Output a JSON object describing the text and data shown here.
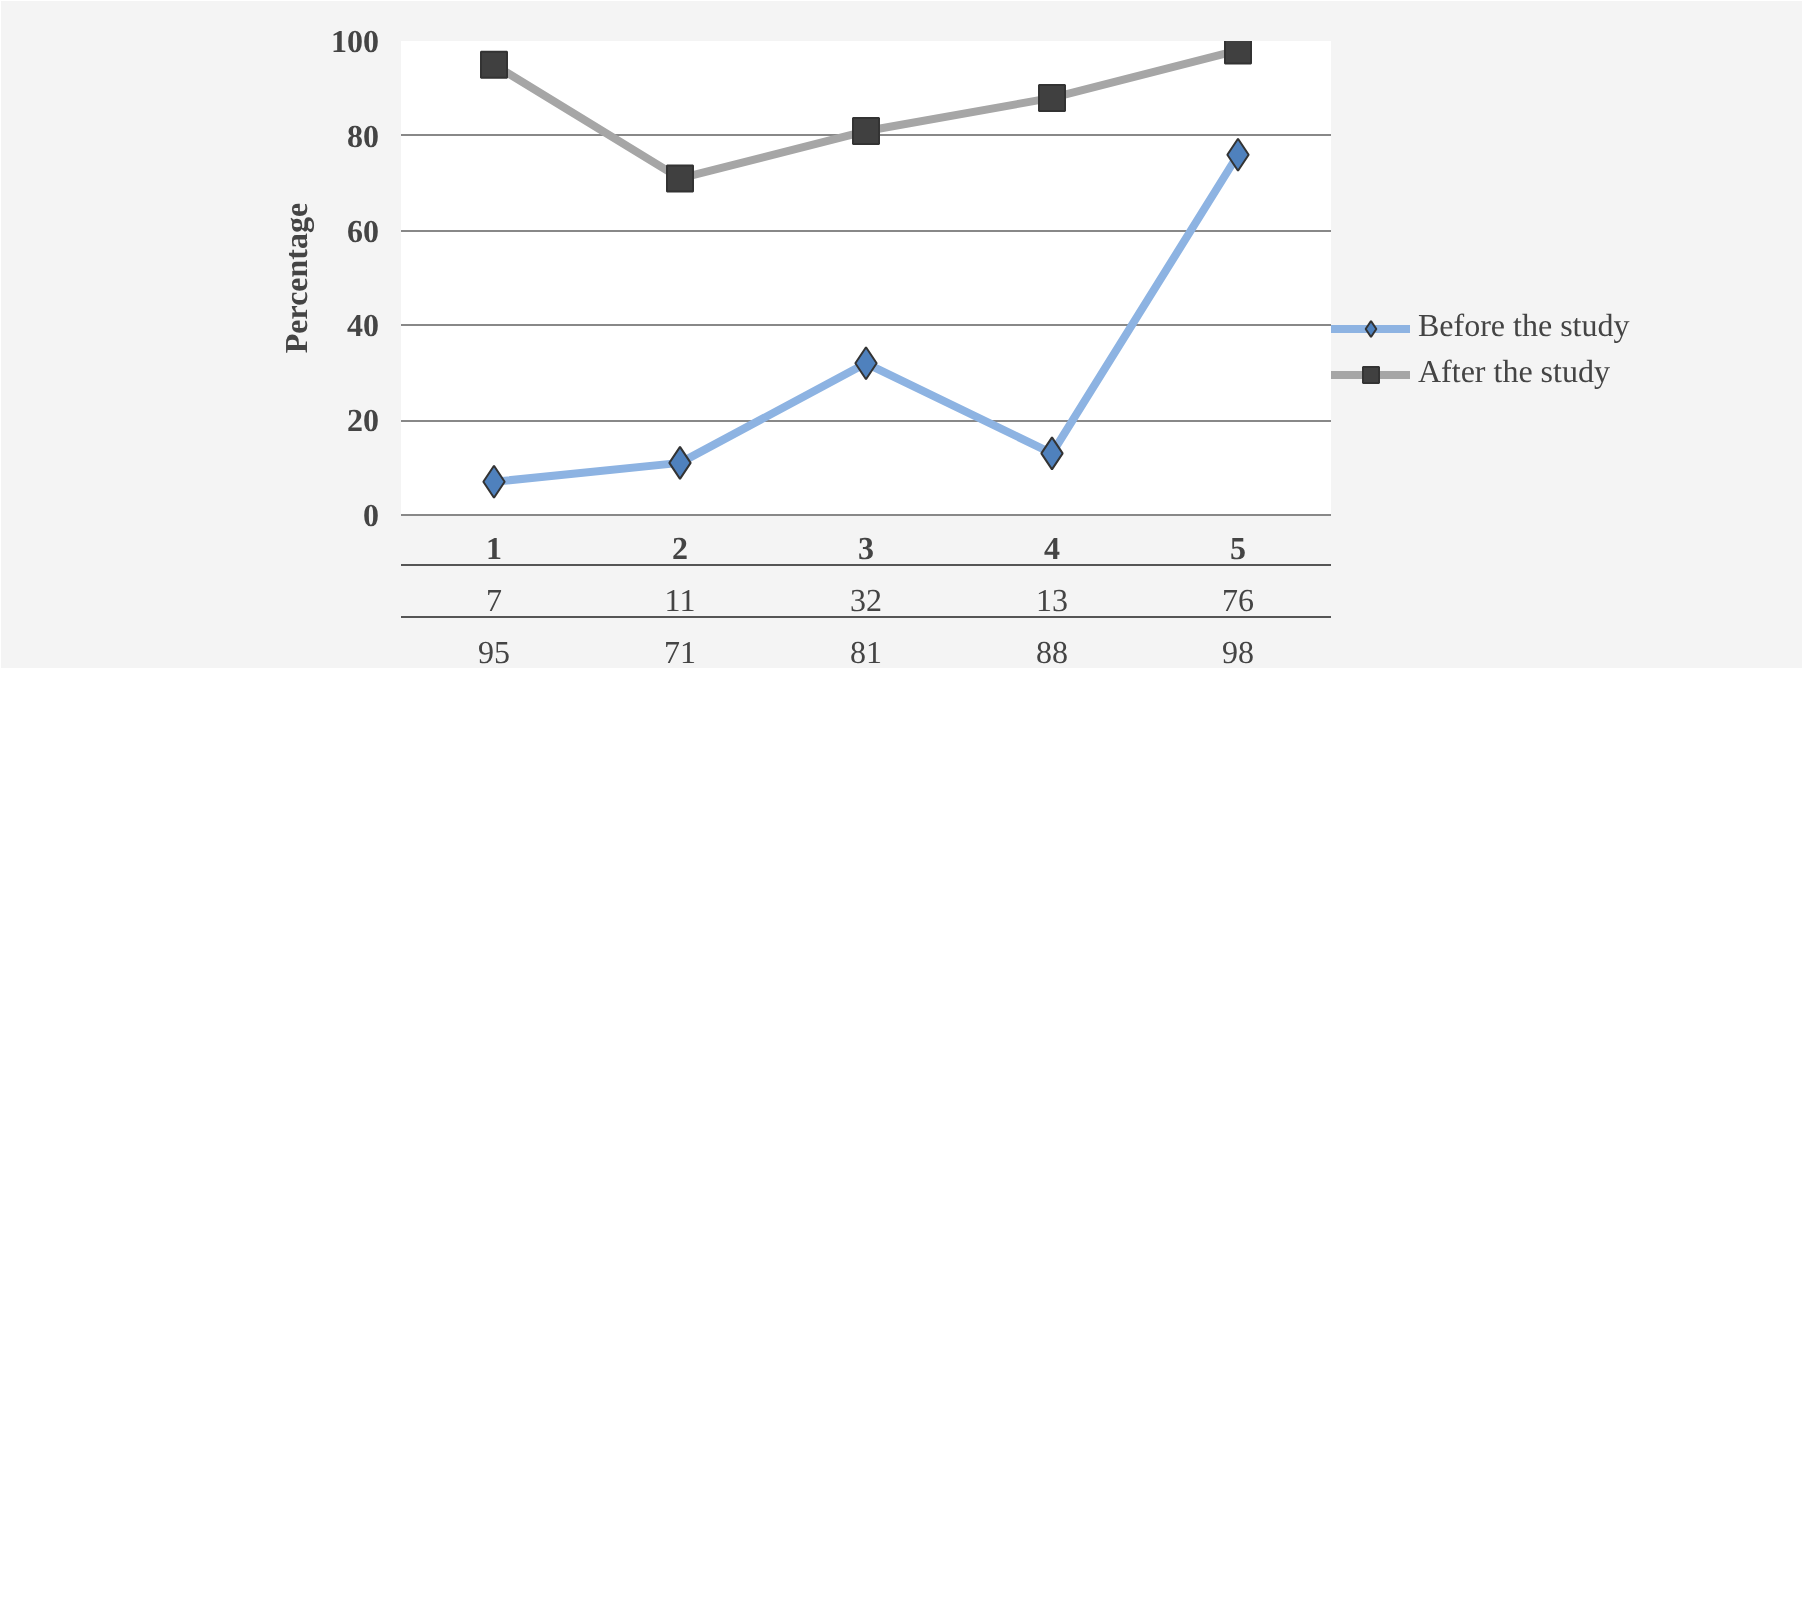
{
  "chart_data": {
    "type": "line",
    "ylabel": "Percentage",
    "categories": [
      "1",
      "2",
      "3",
      "4",
      "5"
    ],
    "series": [
      {
        "name": "Before the study",
        "color": "#8db3e2",
        "colors": [
          "#4f81bd",
          "#4f81bd",
          "#4f81bd",
          "#4f81bd",
          "#4f81bd"
        ],
        "marker": "diamond",
        "values": [
          7,
          11,
          32,
          13,
          76
        ]
      },
      {
        "name": "After the study",
        "color": "#a6a6a6",
        "colors": [
          "#404040",
          "#404040",
          "#404040",
          "#404040",
          "#404040"
        ],
        "marker": "square",
        "values": [
          95,
          71,
          81,
          88,
          98
        ]
      }
    ],
    "ylim": [
      0,
      100
    ],
    "yticks": [
      0,
      20,
      40,
      60,
      80,
      100
    ],
    "grid": "y",
    "legend": "right",
    "data_labels": true
  }
}
